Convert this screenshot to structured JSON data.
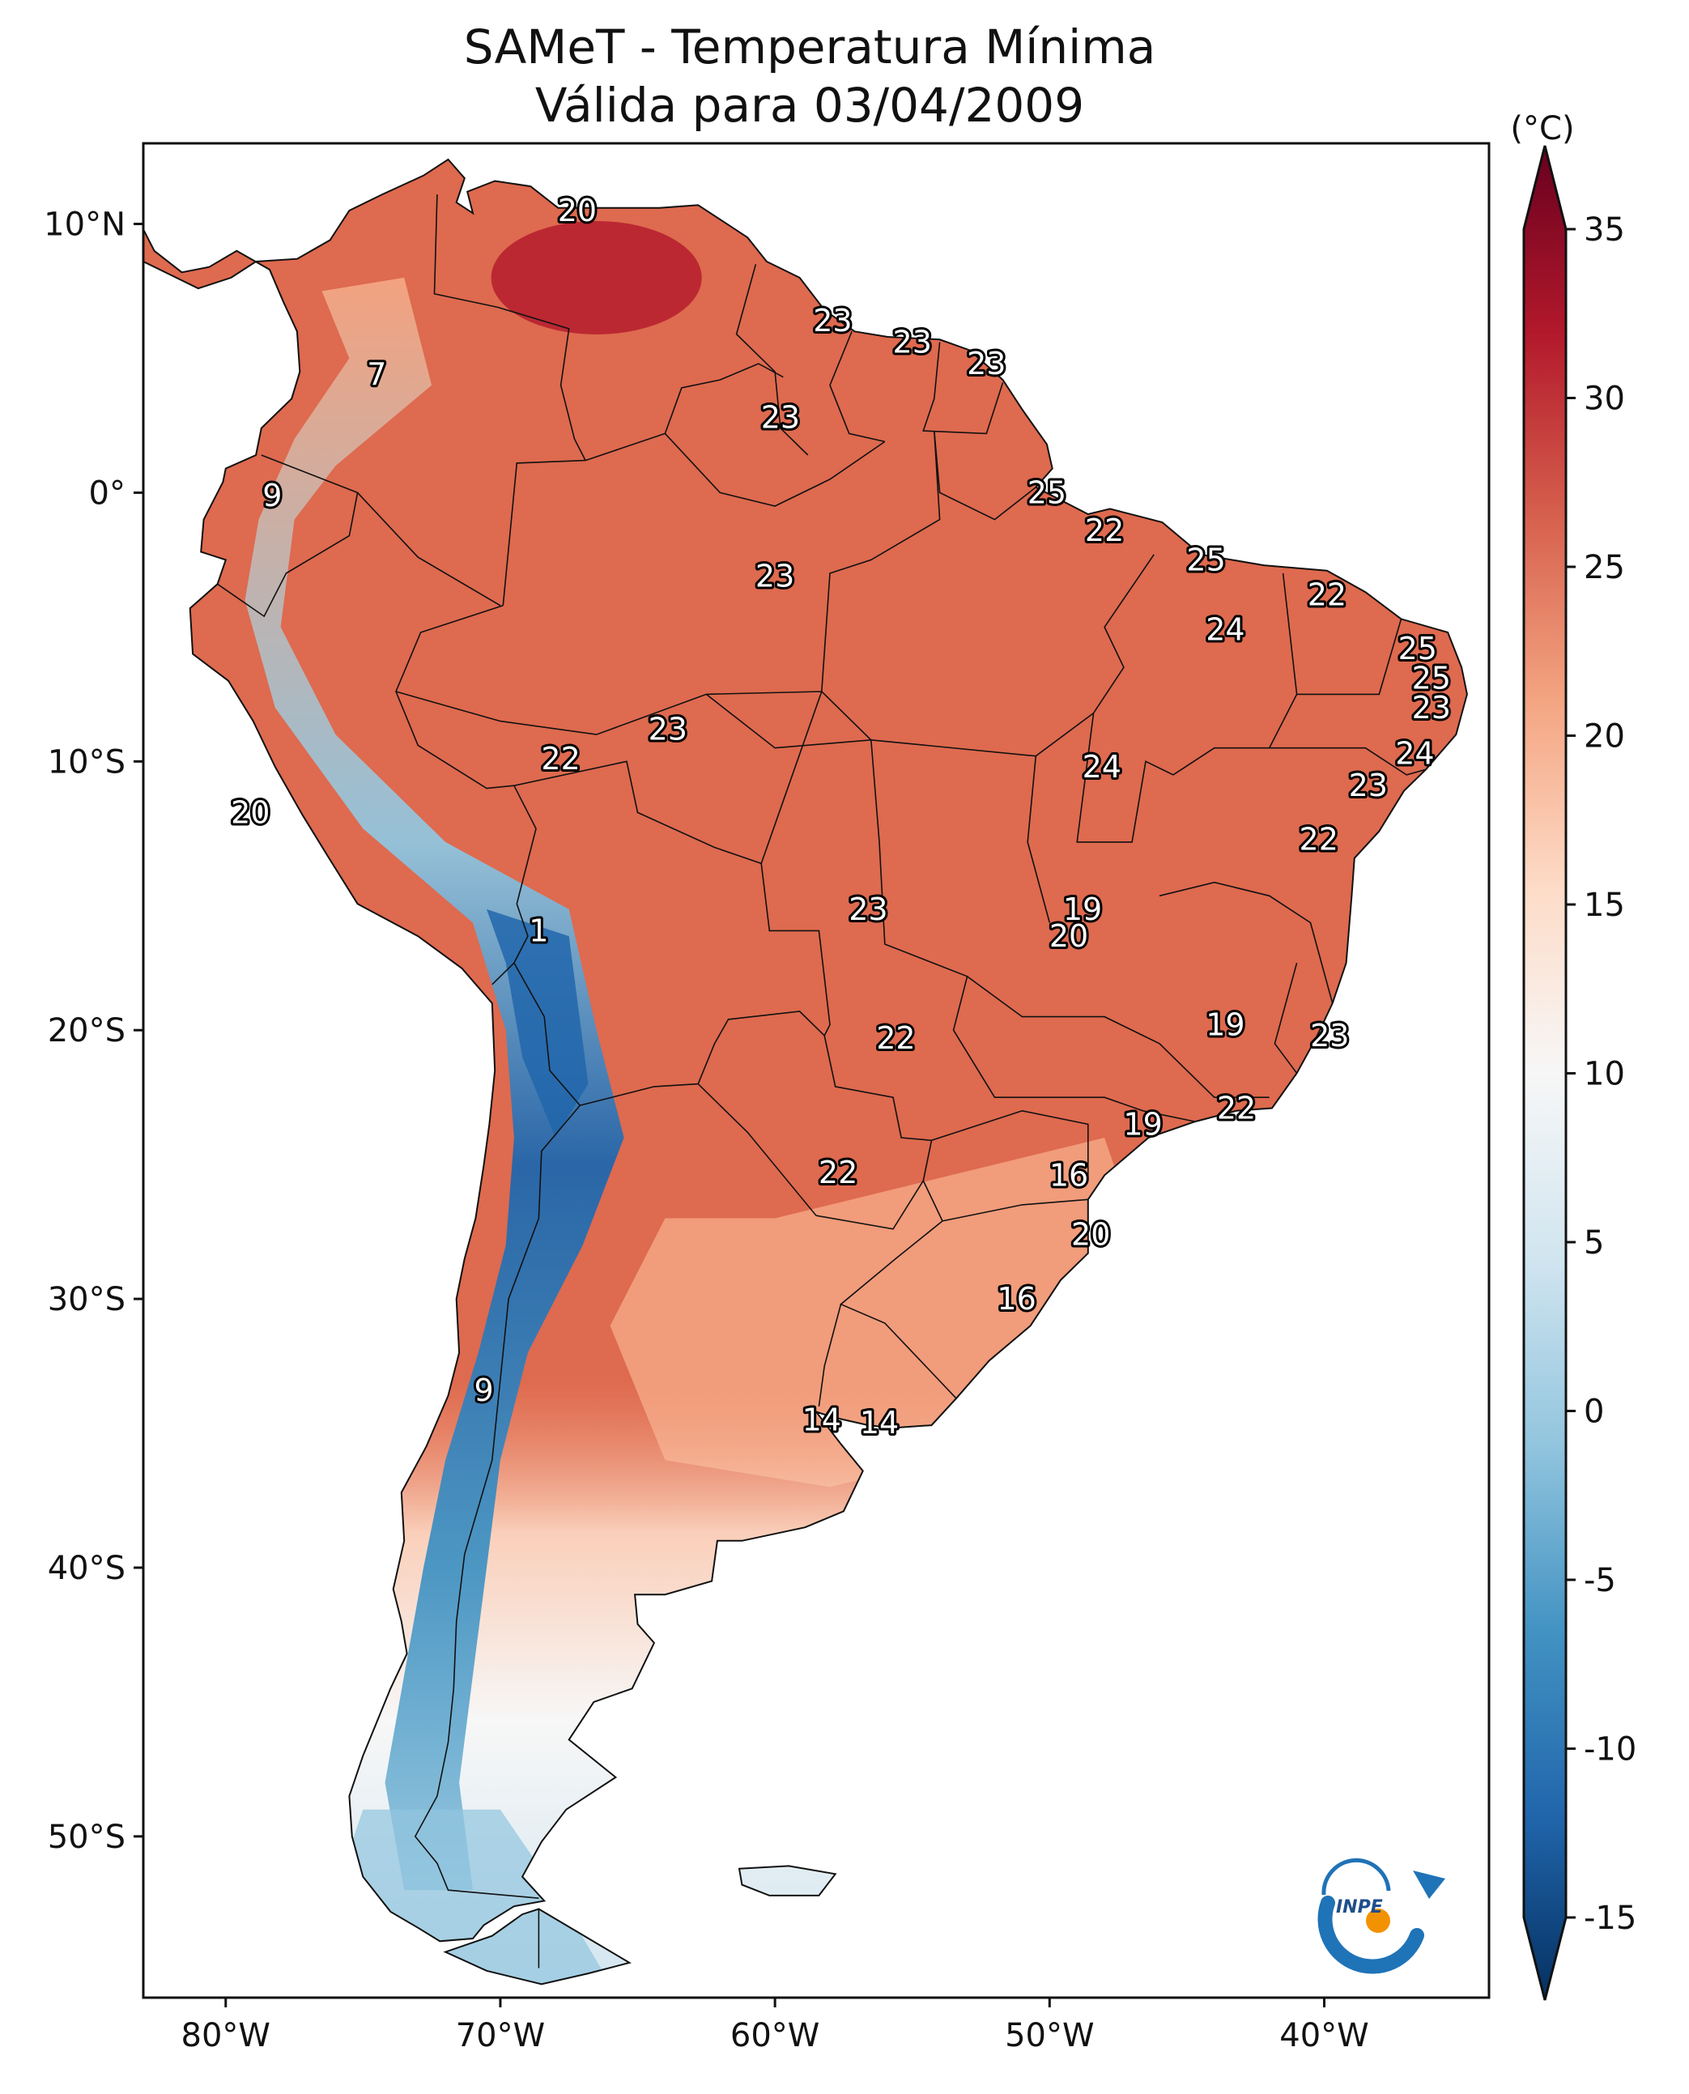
{
  "map": {
    "title_line1": "SAMeT - Temperatura Mínima",
    "title_line2": "Válida para 03/04/2009",
    "extent": {
      "lon": [
        -83,
        -34
      ],
      "lat": [
        -56,
        13
      ]
    },
    "lon_ticks": [
      {
        "value": -80,
        "label": "80°W"
      },
      {
        "value": -70,
        "label": "70°W"
      },
      {
        "value": -60,
        "label": "60°W"
      },
      {
        "value": -50,
        "label": "50°W"
      },
      {
        "value": -40,
        "label": "40°W"
      }
    ],
    "lat_ticks": [
      {
        "value": 10,
        "label": "10°N"
      },
      {
        "value": 0,
        "label": "0°"
      },
      {
        "value": -10,
        "label": "10°S"
      },
      {
        "value": -20,
        "label": "20°S"
      },
      {
        "value": -30,
        "label": "30°S"
      },
      {
        "value": -40,
        "label": "40°S"
      },
      {
        "value": -50,
        "label": "50°S"
      }
    ],
    "colorbar": {
      "unit": "(°C)",
      "min": -15,
      "max": 35,
      "ticks": [
        {
          "value": 35,
          "label": "35"
        },
        {
          "value": 30,
          "label": "30"
        },
        {
          "value": 25,
          "label": "25"
        },
        {
          "value": 20,
          "label": "20"
        },
        {
          "value": 15,
          "label": "15"
        },
        {
          "value": 10,
          "label": "10"
        },
        {
          "value": 5,
          "label": "5"
        },
        {
          "value": 0,
          "label": "0"
        },
        {
          "value": -5,
          "label": "-5"
        },
        {
          "value": -10,
          "label": "-10"
        },
        {
          "value": -15,
          "label": "-15"
        }
      ],
      "colors": [
        "#053061",
        "#2166ac",
        "#4393c3",
        "#92c5de",
        "#d1e5f0",
        "#f7f7f7",
        "#fddbc7",
        "#f4a582",
        "#d6604d",
        "#b2182b",
        "#67001f"
      ]
    },
    "land_color": "#de6a4f",
    "station_labels": [
      {
        "lon": -67.2,
        "lat": 10.5,
        "label": "20"
      },
      {
        "lon": -57.9,
        "lat": 6.4,
        "label": "23"
      },
      {
        "lon": -55.0,
        "lat": 5.6,
        "label": "23"
      },
      {
        "lon": -52.3,
        "lat": 4.8,
        "label": "23"
      },
      {
        "lon": -74.5,
        "lat": 4.4,
        "label": "7"
      },
      {
        "lon": -59.8,
        "lat": 2.8,
        "label": "23"
      },
      {
        "lon": -78.3,
        "lat": -0.1,
        "label": "9"
      },
      {
        "lon": -50.1,
        "lat": 0.0,
        "label": "25"
      },
      {
        "lon": -48.0,
        "lat": -1.4,
        "label": "22"
      },
      {
        "lon": -44.3,
        "lat": -2.5,
        "label": "25"
      },
      {
        "lon": -60.0,
        "lat": -3.1,
        "label": "23"
      },
      {
        "lon": -39.9,
        "lat": -3.8,
        "label": "22"
      },
      {
        "lon": -43.6,
        "lat": -5.1,
        "label": "24"
      },
      {
        "lon": -36.6,
        "lat": -5.8,
        "label": "25"
      },
      {
        "lon": -36.1,
        "lat": -6.9,
        "label": "25"
      },
      {
        "lon": -36.1,
        "lat": -8.0,
        "label": "23"
      },
      {
        "lon": -63.9,
        "lat": -8.8,
        "label": "23"
      },
      {
        "lon": -36.7,
        "lat": -9.7,
        "label": "24"
      },
      {
        "lon": -67.8,
        "lat": -9.9,
        "label": "22"
      },
      {
        "lon": -48.1,
        "lat": -10.2,
        "label": "24"
      },
      {
        "lon": -38.4,
        "lat": -10.9,
        "label": "23"
      },
      {
        "lon": -79.1,
        "lat": -11.9,
        "label": "20"
      },
      {
        "lon": -40.2,
        "lat": -12.9,
        "label": "22"
      },
      {
        "lon": -48.8,
        "lat": -15.5,
        "label": "19"
      },
      {
        "lon": -56.6,
        "lat": -15.5,
        "label": "23"
      },
      {
        "lon": -68.6,
        "lat": -16.3,
        "label": "1"
      },
      {
        "lon": -49.3,
        "lat": -16.5,
        "label": "20"
      },
      {
        "lon": -43.6,
        "lat": -19.8,
        "label": "19"
      },
      {
        "lon": -39.8,
        "lat": -20.2,
        "label": "23"
      },
      {
        "lon": -55.6,
        "lat": -20.3,
        "label": "22"
      },
      {
        "lon": -43.2,
        "lat": -22.9,
        "label": "22"
      },
      {
        "lon": -46.6,
        "lat": -23.5,
        "label": "19"
      },
      {
        "lon": -57.7,
        "lat": -25.3,
        "label": "22"
      },
      {
        "lon": -49.3,
        "lat": -25.4,
        "label": "16"
      },
      {
        "lon": -48.5,
        "lat": -27.6,
        "label": "20"
      },
      {
        "lon": -51.2,
        "lat": -30.0,
        "label": "16"
      },
      {
        "lon": -70.6,
        "lat": -33.4,
        "label": "9"
      },
      {
        "lon": -58.3,
        "lat": -34.5,
        "label": "14"
      },
      {
        "lon": -56.2,
        "lat": -34.6,
        "label": "14"
      }
    ],
    "logo": {
      "text": "INPE"
    }
  }
}
